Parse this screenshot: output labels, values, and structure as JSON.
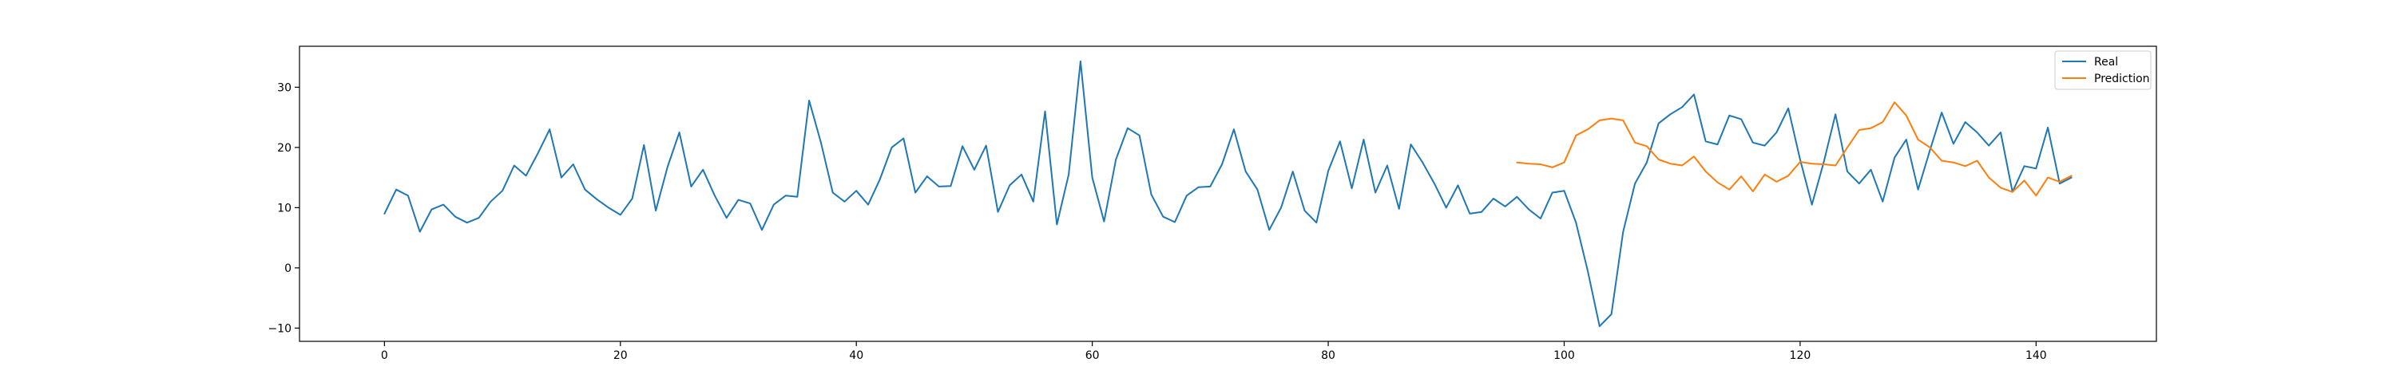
{
  "chart_data": {
    "type": "line",
    "title": "",
    "xlabel": "",
    "ylabel": "",
    "xlim": [
      -7.2,
      150.2
    ],
    "ylim": [
      -12.2,
      36.8
    ],
    "x_ticks": [
      0,
      20,
      40,
      60,
      80,
      100,
      120,
      140
    ],
    "y_ticks": [
      -10,
      0,
      10,
      20,
      30
    ],
    "grid": false,
    "legend_position": "top-right",
    "series": [
      {
        "name": "Real",
        "color": "#1f77b4",
        "x_start": 0,
        "values": [
          9.0,
          13.0,
          12.0,
          6.0,
          9.7,
          10.5,
          8.5,
          7.5,
          8.3,
          11.0,
          12.8,
          17.0,
          15.3,
          19.0,
          23.0,
          15.0,
          17.2,
          13.0,
          11.4,
          10.0,
          8.8,
          11.5,
          20.4,
          9.5,
          16.8,
          22.5,
          13.5,
          16.3,
          12.0,
          8.3,
          11.3,
          10.7,
          6.3,
          10.5,
          12.0,
          11.8,
          27.8,
          20.8,
          12.5,
          11.0,
          12.8,
          10.5,
          14.7,
          20.0,
          21.5,
          12.5,
          15.2,
          13.5,
          13.6,
          20.2,
          16.3,
          20.3,
          9.3,
          13.7,
          15.5,
          11.0,
          26.0,
          7.2,
          15.5,
          34.3,
          15.0,
          7.7,
          18.0,
          23.2,
          22.0,
          12.2,
          8.5,
          7.6,
          12.0,
          13.4,
          13.5,
          17.2,
          23.0,
          16.0,
          13.0,
          6.3,
          10.0,
          16.0,
          9.5,
          7.5,
          16.1,
          21.0,
          13.2,
          21.3,
          12.5,
          17.0,
          9.8,
          20.5,
          17.5,
          14.0,
          10.0,
          13.7,
          9.0,
          9.3,
          11.5,
          10.2,
          11.8,
          9.7,
          8.2,
          12.5,
          12.8,
          7.5,
          -0.5,
          -9.7,
          -7.7,
          6.0,
          14.0,
          17.5,
          24.0,
          25.5,
          26.7,
          28.8,
          21.0,
          20.5,
          25.3,
          24.7,
          20.8,
          20.3,
          22.5,
          26.5,
          18.0,
          10.5,
          17.5,
          25.5,
          16.0,
          14.0,
          16.3,
          11.0,
          18.3,
          21.3,
          13.0,
          19.5,
          25.8,
          20.6,
          24.2,
          22.5,
          20.3,
          22.5,
          12.6,
          16.9,
          16.5,
          23.3,
          14.0,
          15.0
        ]
      },
      {
        "name": "Prediction",
        "color": "#ff7f0e",
        "x_start": 96,
        "values": [
          17.5,
          17.3,
          17.2,
          16.7,
          17.5,
          22.0,
          23.0,
          24.5,
          24.8,
          24.5,
          20.8,
          20.2,
          18.0,
          17.3,
          17.0,
          18.5,
          16.0,
          14.2,
          13.0,
          15.2,
          12.7,
          15.5,
          14.3,
          15.3,
          17.6,
          17.3,
          17.2,
          17.0,
          20.0,
          22.9,
          23.2,
          24.2,
          27.5,
          25.3,
          21.3,
          20.0,
          17.8,
          17.5,
          16.9,
          17.8,
          15.0,
          13.3,
          12.6,
          14.5,
          12.0,
          15.0,
          14.3,
          15.3
        ]
      }
    ]
  }
}
